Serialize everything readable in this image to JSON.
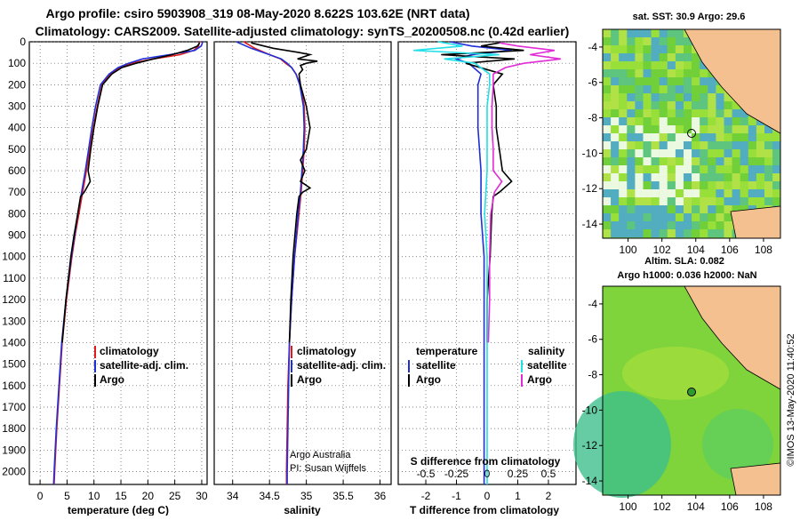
{
  "header": {
    "line1": "Argo profile: csiro 5903908_319 08-May-2020 8.622S 103.62E (NRT data)",
    "line2": "Climatology: CARS2009. Satellite-adjusted climatology: synTS_20200508.nc (0.42d earlier)"
  },
  "colors": {
    "climatology": "#e31a1c",
    "satellite": "#1f2fd6",
    "argo": "#000000",
    "sat_sal": "#22e0e8",
    "argo_sal": "#e02bd6",
    "land": "#f5c08f",
    "sea_green": "#7ed43a"
  },
  "depth_axis": {
    "ticks": [
      0,
      100,
      200,
      300,
      400,
      500,
      600,
      700,
      800,
      900,
      1000,
      1100,
      1200,
      1300,
      1400,
      1500,
      1600,
      1700,
      1800,
      1900,
      2000
    ],
    "max": 2060
  },
  "chart_data": [
    {
      "type": "line",
      "name": "temperature",
      "xlabel": "temperature (deg C)",
      "xlim": [
        -2,
        31
      ],
      "xticks": [
        0,
        5,
        10,
        15,
        20,
        25,
        30
      ],
      "legend": [
        "climatology",
        "satellite-adj. clim.",
        "Argo"
      ],
      "series": [
        {
          "name": "climatology",
          "y": [
            0,
            20,
            40,
            60,
            80,
            100,
            120,
            150,
            200,
            300,
            400,
            500,
            600,
            700,
            800,
            900,
            1000,
            1200,
            1400,
            1600,
            1800,
            2000,
            2060
          ],
          "x": [
            29.6,
            29.4,
            28.5,
            26,
            21,
            17,
            14.8,
            13,
            11.5,
            10.6,
            9.9,
            9.2,
            8.6,
            7.9,
            7.2,
            6.5,
            5.9,
            4.9,
            4.1,
            3.6,
            3.1,
            2.7,
            2.6
          ]
        },
        {
          "name": "satellite-adj. clim.",
          "y": [
            0,
            20,
            40,
            60,
            80,
            100,
            120,
            150,
            200,
            300,
            400,
            500,
            600,
            700,
            800,
            900,
            1000,
            1200,
            1400,
            1600,
            1800,
            2000,
            2060
          ],
          "x": [
            30.2,
            29.9,
            28.7,
            24,
            19,
            16.4,
            14.5,
            12.8,
            11.2,
            10.3,
            9.6,
            9.0,
            8.4,
            7.7,
            7.0,
            6.4,
            5.8,
            4.8,
            4.0,
            3.5,
            3.0,
            2.6,
            2.5
          ]
        },
        {
          "name": "Argo",
          "y": [
            5,
            20,
            40,
            60,
            80,
            100,
            120,
            150,
            200,
            300,
            400,
            500,
            600,
            650,
            700,
            720,
            800,
            900,
            1000,
            1200,
            1400
          ],
          "x": [
            29.6,
            29.2,
            27.3,
            24.5,
            21,
            17.8,
            15.2,
            13.3,
            11.6,
            10.7,
            10.0,
            9.4,
            8.9,
            9.3,
            8.2,
            7.5,
            7.0,
            6.3,
            5.7,
            4.8,
            4.1
          ]
        }
      ]
    },
    {
      "type": "line",
      "name": "salinity",
      "xlabel": "salinity",
      "xlim": [
        33.75,
        36.15
      ],
      "xticks": [
        34,
        34.5,
        35,
        35.5,
        36
      ],
      "legend": [
        "climatology",
        "satellite-adj. clim.",
        "Argo"
      ],
      "annotations": [
        "Argo Australia",
        "PI: Susan Wijffels"
      ],
      "series": [
        {
          "name": "climatology",
          "y": [
            0,
            30,
            60,
            80,
            100,
            120,
            150,
            200,
            300,
            400,
            500,
            600,
            700,
            800,
            1000,
            1200,
            1400,
            1600,
            1800,
            2000,
            2060
          ],
          "x": [
            34.15,
            34.3,
            34.5,
            34.65,
            34.72,
            34.8,
            34.86,
            34.92,
            34.97,
            34.98,
            34.97,
            34.95,
            34.93,
            34.9,
            34.84,
            34.8,
            34.77,
            34.75,
            34.74,
            34.73,
            34.73
          ]
        },
        {
          "name": "satellite-adj. clim.",
          "y": [
            0,
            30,
            60,
            80,
            100,
            120,
            150,
            200,
            300,
            400,
            500,
            600,
            700,
            800,
            1000,
            1200,
            1400,
            1600,
            1800,
            2000,
            2060
          ],
          "x": [
            34.05,
            34.25,
            34.5,
            34.66,
            34.74,
            34.8,
            34.86,
            34.91,
            34.96,
            34.97,
            34.96,
            34.94,
            34.92,
            34.89,
            34.84,
            34.8,
            34.77,
            34.76,
            34.75,
            34.74,
            34.74
          ]
        },
        {
          "name": "Argo",
          "y": [
            5,
            30,
            50,
            60,
            80,
            90,
            100,
            110,
            130,
            150,
            200,
            300,
            400,
            500,
            550,
            600,
            650,
            680,
            700,
            720,
            800,
            1000,
            1200,
            1400
          ],
          "x": [
            34.25,
            34.55,
            34.9,
            35.05,
            34.88,
            35.15,
            35.0,
            34.92,
            34.95,
            34.9,
            34.92,
            35.0,
            35.05,
            35.0,
            34.92,
            34.98,
            34.92,
            35.05,
            34.95,
            34.9,
            34.87,
            34.82,
            34.79,
            34.77
          ]
        }
      ]
    },
    {
      "type": "line",
      "name": "difference",
      "xlabel": "T difference from climatology",
      "xlabel_top": "S difference from climatology",
      "xlim": [
        -2.9,
        2.9
      ],
      "xticks": [
        -2,
        -1,
        0,
        1,
        2
      ],
      "xticks_s": [
        -0.5,
        -0.25,
        0,
        0.25,
        0.5
      ],
      "legend_t": [
        "temperature",
        "satellite",
        "Argo"
      ],
      "legend_s": [
        "salinity",
        "satellite",
        "Argo"
      ],
      "series": [
        {
          "name": "T satellite",
          "y": [
            0,
            20,
            40,
            60,
            80,
            100,
            150,
            200,
            300,
            400,
            600,
            800,
            1000,
            1400,
            2000,
            2060
          ],
          "x": [
            -1.2,
            -0.5,
            0.8,
            -0.5,
            -1.0,
            -0.6,
            -0.2,
            -0.3,
            -0.3,
            -0.3,
            -0.2,
            -0.2,
            -0.1,
            -0.1,
            -0.1,
            -0.1
          ]
        },
        {
          "name": "T Argo",
          "y": [
            5,
            20,
            40,
            60,
            80,
            100,
            150,
            200,
            300,
            400,
            500,
            600,
            650,
            700,
            720,
            800,
            1000,
            1200,
            1400
          ],
          "x": [
            0.4,
            -0.2,
            1.2,
            -1.5,
            0.9,
            -0.7,
            0.5,
            0.2,
            0.3,
            0.3,
            0.4,
            0.5,
            0.8,
            0.4,
            0.2,
            0.15,
            0.1,
            0.0,
            0.0
          ]
        },
        {
          "name": "S satellite",
          "y": [
            0,
            20,
            40,
            60,
            80,
            100,
            150,
            200,
            300,
            400,
            600,
            800,
            1000,
            1400,
            2000,
            2060
          ],
          "x": [
            -0.4,
            -0.2,
            -0.6,
            0.1,
            -0.35,
            -0.1,
            0.02,
            0.02,
            0.0,
            0.0,
            0.0,
            -0.02,
            0.0,
            0.0,
            0.0,
            0.0
          ]
        },
        {
          "name": "S Argo",
          "y": [
            5,
            20,
            40,
            60,
            80,
            100,
            120,
            150,
            200,
            300,
            400,
            500,
            600,
            650,
            700,
            800,
            1000,
            1200,
            1400
          ],
          "x": [
            0.1,
            0.25,
            0.55,
            0.35,
            0.6,
            0.3,
            0.15,
            0.05,
            0.05,
            0.04,
            0.04,
            0.05,
            0.05,
            0.12,
            0.06,
            0.03,
            0.02,
            0.02,
            0.01
          ]
        }
      ]
    }
  ],
  "map_top": {
    "title": "sat. SST: 30.9 Argo: 29.6",
    "yticks": [
      -4,
      -6,
      -8,
      -10,
      -12,
      -14
    ],
    "xticks": [
      100,
      102,
      104,
      106,
      108
    ]
  },
  "map_bottom": {
    "title1": "Altim. SLA: 0.082",
    "title2": "Argo h1000: 0.036 h2000: NaN",
    "yticks": [
      -4,
      -6,
      -8,
      -10,
      -12,
      -14
    ],
    "xticks": [
      100,
      102,
      104,
      106,
      108
    ]
  },
  "footer": {
    "credit": "©IMOS 13-May-2020 11:40:52"
  }
}
